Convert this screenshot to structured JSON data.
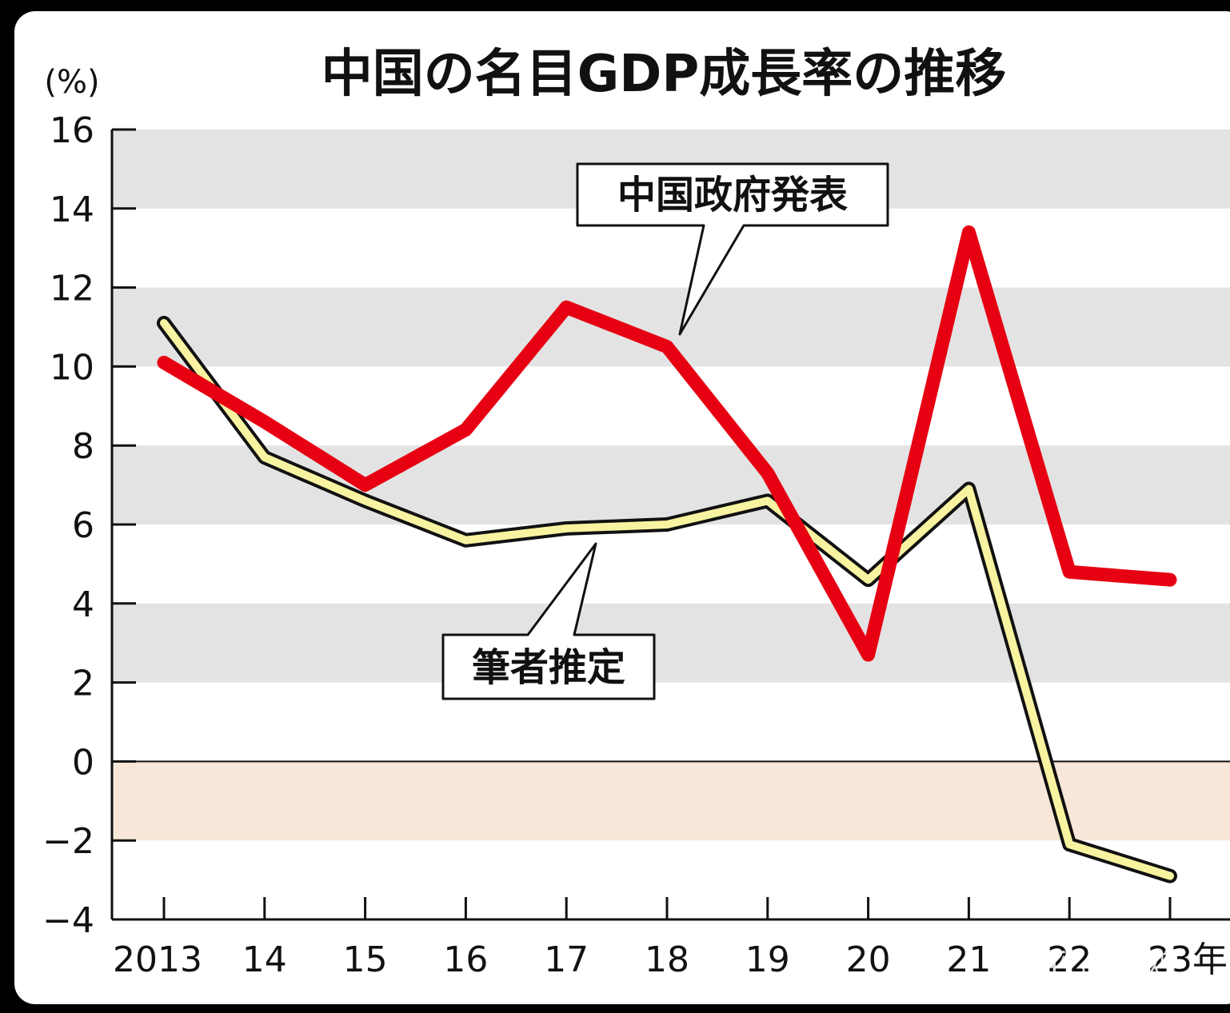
{
  "chart_data": {
    "type": "line",
    "title": "中国の名目GDP成長率の推移",
    "ylabel": "(%)",
    "xlabel": "",
    "ylim": [
      -4,
      16
    ],
    "yticks": [
      16,
      14,
      12,
      10,
      8,
      6,
      4,
      2,
      0,
      -2,
      -4
    ],
    "yticks_labels": [
      "16",
      "14",
      "12",
      "10",
      "8",
      "6",
      "4",
      "2",
      "0",
      "−2",
      "−4"
    ],
    "categories": [
      "2013",
      "14",
      "15",
      "16",
      "17",
      "18",
      "19",
      "20",
      "21",
      "22",
      "23年"
    ],
    "series": [
      {
        "name": "中国政府発表",
        "color": "#e60012",
        "values": [
          10.1,
          8.6,
          7.0,
          8.4,
          11.5,
          10.5,
          7.3,
          2.7,
          13.4,
          4.8,
          4.6
        ]
      },
      {
        "name": "筆者推定",
        "color": "#f7f3a1",
        "outline": "#111111",
        "values": [
          11.1,
          7.7,
          6.6,
          5.6,
          5.9,
          6.0,
          6.6,
          4.6,
          6.9,
          -2.1,
          -2.9
        ]
      }
    ],
    "grid": "alternating horizontal bands",
    "band_colors": {
      "positive": "#e3e3e3",
      "negative": "#f8e7d9"
    },
    "legend": "callout labels"
  },
  "watermark": "知乎 @白鸥"
}
